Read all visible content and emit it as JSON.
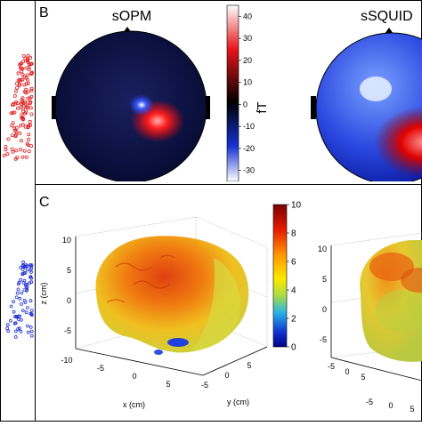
{
  "panel_b": {
    "letter": "B",
    "left_title": "sOPM",
    "right_title": "sSQUID",
    "colorbar_unit": "fT",
    "colorbar_ticks": [
      "40",
      "30",
      "20",
      "10",
      "0",
      "-10",
      "-20",
      "-30"
    ],
    "colormap": [
      "#ffffff",
      "#e6141a",
      "#000000",
      "#1432d2",
      "#ffffff"
    ]
  },
  "panel_c": {
    "letter": "C",
    "colorbar_ticks": [
      "10",
      "8",
      "6",
      "4",
      "2",
      "0"
    ],
    "colormap": [
      "#7a0000",
      "#e81c00",
      "#ff9a00",
      "#ffe800",
      "#aadd44",
      "#28b4e6",
      "#1030d0",
      "#000088"
    ],
    "left_plot": {
      "z_axis_label": "z (cm)",
      "x_axis_label": "x (cm)",
      "y_axis_label": "y (cm)",
      "z_ticks": [
        "10",
        "5",
        "0",
        "-5"
      ],
      "x_ticks": [
        "-10",
        "-5",
        "0",
        "5"
      ],
      "y_ticks": [
        "-5",
        "0",
        "5"
      ]
    },
    "right_plot": {
      "z_ticks": [
        "10",
        "5",
        "0",
        "-5"
      ],
      "x_ticks": [
        "-5",
        "0",
        "5"
      ],
      "y_ticks": [
        "-5",
        "0",
        "5"
      ]
    }
  }
}
